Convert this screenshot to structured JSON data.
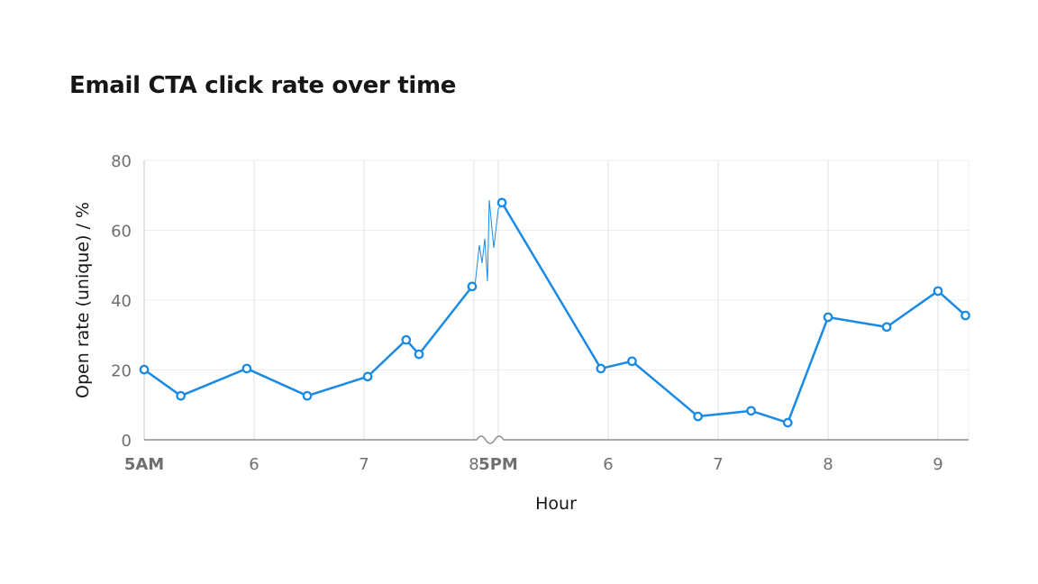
{
  "chart_data": {
    "type": "line",
    "title": "Email CTA click rate over time",
    "xlabel": "Hour",
    "ylabel": "Open rate (unique) / %",
    "ylim": [
      0,
      80
    ],
    "yticks": [
      0,
      20,
      40,
      60,
      80
    ],
    "grid": true,
    "axis_break": {
      "from": "08:00",
      "to": "17:00"
    },
    "xticks": [
      {
        "time": "05:00",
        "label": "5AM",
        "bold": true
      },
      {
        "time": "06:00",
        "label": "6"
      },
      {
        "time": "07:00",
        "label": "7"
      },
      {
        "time": "08:00",
        "label": "8"
      },
      {
        "time": "17:00",
        "label": "5PM",
        "bold": true
      },
      {
        "time": "18:00",
        "label": "6"
      },
      {
        "time": "19:00",
        "label": "7"
      },
      {
        "time": "20:00",
        "label": "8"
      },
      {
        "time": "21:00",
        "label": "9"
      }
    ],
    "color": "#1a8ae5",
    "points": [
      {
        "x": "05:00",
        "y": 20.1
      },
      {
        "x": "05:20",
        "y": 12.6
      },
      {
        "x": "05:56",
        "y": 20.4
      },
      {
        "x": "06:29",
        "y": 12.6
      },
      {
        "x": "07:02",
        "y": 18.1
      },
      {
        "x": "07:23",
        "y": 28.6
      },
      {
        "x": "07:30",
        "y": 24.5
      },
      {
        "x": "07:59",
        "y": 43.9
      },
      {
        "x": "17:02",
        "y": 67.9
      },
      {
        "x": "17:56",
        "y": 20.4
      },
      {
        "x": "18:13",
        "y": 22.5
      },
      {
        "x": "18:49",
        "y": 6.7
      },
      {
        "x": "19:18",
        "y": 8.3
      },
      {
        "x": "19:38",
        "y": 4.9
      },
      {
        "x": "20:00",
        "y": 35.1
      },
      {
        "x": "20:32",
        "y": 32.3
      },
      {
        "x": "21:00",
        "y": 42.6
      },
      {
        "x": "21:15",
        "y": 35.6
      }
    ]
  }
}
